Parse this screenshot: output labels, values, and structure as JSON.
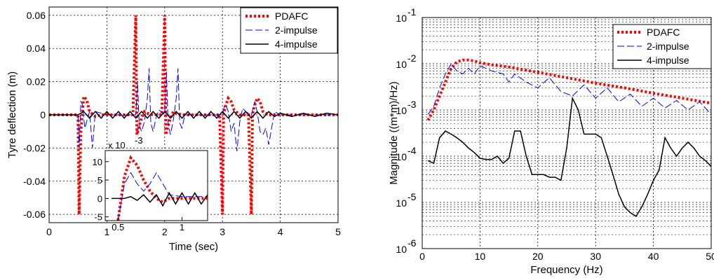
{
  "chart_data": [
    {
      "type": "line",
      "xlabel": "Time (sec)",
      "ylabel": "Tyre deflection (m)",
      "xlim": [
        0,
        5
      ],
      "ylim": [
        -0.065,
        0.065
      ],
      "xticks": [
        "0",
        "1",
        "2",
        "3",
        "4",
        "5"
      ],
      "yticks": [
        "-0.06",
        "-0.04",
        "-0.02",
        "0",
        "0.02",
        "0.04",
        "0.06"
      ],
      "grid": true,
      "legend_position": "top-right",
      "series": [
        {
          "name": "PDAFC",
          "color": "#ff0000",
          "style": "dotted",
          "width": 4,
          "x": [
            0,
            0.45,
            0.5,
            0.52,
            0.55,
            0.6,
            0.65,
            0.7,
            0.8,
            0.9,
            1.0,
            1.45,
            1.5,
            1.52,
            1.55,
            1.6,
            1.65,
            1.7,
            1.8,
            1.95,
            2.0,
            2.02,
            2.05,
            2.1,
            2.15,
            2.2,
            2.3,
            2.5,
            2.95,
            3.0,
            3.02,
            3.05,
            3.1,
            3.15,
            3.2,
            3.3,
            3.45,
            3.5,
            3.52,
            3.55,
            3.6,
            3.65,
            3.7,
            3.8,
            4.0,
            5.0
          ],
          "y": [
            0,
            0,
            0,
            -0.06,
            -0.01,
            0.011,
            0.009,
            0.002,
            -0.001,
            0,
            0,
            0,
            0.06,
            -0.012,
            -0.008,
            -0.002,
            0.002,
            0.001,
            0,
            0,
            0.06,
            -0.012,
            -0.008,
            -0.002,
            0.002,
            0.001,
            0,
            0,
            0,
            -0.06,
            0,
            0.005,
            0.01,
            0.008,
            0.003,
            0,
            0,
            -0.06,
            0,
            0.005,
            0.01,
            0.008,
            0.002,
            0,
            0,
            0
          ]
        },
        {
          "name": "2-impulse",
          "color": "#0000ff",
          "style": "dashed",
          "width": 1,
          "x": [
            0,
            0.5,
            0.52,
            0.55,
            0.58,
            0.6,
            0.62,
            0.65,
            0.7,
            0.75,
            0.8,
            1.0,
            1.5,
            1.53,
            1.56,
            1.6,
            1.65,
            1.7,
            1.73,
            1.76,
            1.8,
            1.85,
            1.9,
            2.0,
            2.03,
            2.06,
            2.1,
            2.15,
            2.2,
            2.23,
            2.26,
            2.3,
            2.35,
            2.5,
            3.0,
            3.03,
            3.06,
            3.1,
            3.15,
            3.2,
            3.25,
            3.3,
            3.35,
            3.4,
            3.5,
            3.53,
            3.56,
            3.6,
            3.65,
            3.7,
            3.75,
            3.8,
            3.9,
            4.0,
            5.0
          ],
          "y": [
            0,
            0,
            -0.02,
            0.008,
            0.006,
            -0.002,
            -0.008,
            -0.004,
            0.002,
            -0.02,
            0.002,
            0,
            0,
            0.02,
            -0.006,
            -0.01,
            -0.004,
            0.01,
            0.028,
            -0.005,
            -0.01,
            -0.002,
            0.003,
            0,
            0.026,
            -0.005,
            -0.012,
            -0.003,
            0.01,
            0.028,
            -0.005,
            -0.008,
            0,
            0,
            0,
            0.005,
            0.006,
            0.002,
            -0.01,
            -0.005,
            -0.022,
            -0.004,
            0.004,
            0.002,
            0,
            0.004,
            0.008,
            0.002,
            -0.01,
            -0.012,
            -0.008,
            -0.018,
            0.002,
            0,
            0
          ]
        },
        {
          "name": "4-impulse",
          "color": "#000000",
          "style": "solid",
          "width": 1.5,
          "x": [
            0,
            0.5,
            0.6,
            0.7,
            0.8,
            0.9,
            1.0,
            1.1,
            1.2,
            1.3,
            1.4,
            1.5,
            1.6,
            1.7,
            1.8,
            1.9,
            2.0,
            2.1,
            2.2,
            2.3,
            2.4,
            2.5,
            2.6,
            2.7,
            2.8,
            2.9,
            3.0,
            3.1,
            3.2,
            3.3,
            3.4,
            3.5,
            3.6,
            3.7,
            3.8,
            3.9,
            4.0,
            4.2,
            4.4,
            4.6,
            4.8,
            5.0
          ],
          "y": [
            0,
            0,
            0.002,
            -0.002,
            0.002,
            -0.002,
            0.002,
            -0.002,
            0.002,
            -0.002,
            0.002,
            -0.002,
            0.002,
            -0.002,
            0.002,
            -0.002,
            0.002,
            -0.002,
            0.002,
            -0.002,
            0.002,
            -0.002,
            0.002,
            -0.002,
            0.002,
            -0.002,
            0.002,
            -0.002,
            0.002,
            -0.002,
            0.002,
            -0.002,
            0.002,
            -0.002,
            0.002,
            -0.001,
            0.001,
            -0.001,
            0.001,
            -0.001,
            0.001,
            0
          ]
        }
      ],
      "inset": {
        "xlim": [
          0.4,
          1.2
        ],
        "ylim": [
          -6,
          13
        ],
        "xticks": [
          "0.5",
          "1"
        ],
        "yticks": [
          "-5",
          "0",
          "5",
          "10"
        ],
        "exponent_label": "x 10",
        "exponent_power": "-3",
        "series": [
          {
            "name": "PDAFC",
            "x": [
              0.5,
              0.55,
              0.6,
              0.65,
              0.7,
              0.75,
              0.8,
              0.85,
              0.9,
              1.0,
              1.1,
              1.2
            ],
            "y": [
              -6,
              6,
              11,
              9,
              5,
              2,
              0,
              -1,
              0,
              0,
              0,
              0
            ]
          },
          {
            "name": "2-impulse",
            "x": [
              0.5,
              0.55,
              0.6,
              0.65,
              0.7,
              0.75,
              0.8,
              0.85,
              0.9,
              1.0,
              1.1,
              1.2
            ],
            "y": [
              -6,
              4,
              7,
              4,
              2,
              4,
              7,
              4,
              1,
              0.5,
              0.5,
              0.5
            ]
          },
          {
            "name": "4-impulse",
            "x": [
              0.45,
              0.55,
              0.6,
              0.65,
              0.7,
              0.75,
              0.8,
              0.85,
              0.9,
              0.95,
              1.0,
              1.05,
              1.1,
              1.15,
              1.2
            ],
            "y": [
              0,
              0,
              0.5,
              -0.5,
              1,
              -1,
              1,
              -2,
              1.5,
              -1.5,
              1.5,
              -1.5,
              1.5,
              -1.5,
              1
            ]
          }
        ]
      }
    },
    {
      "type": "line",
      "xlabel": "Frequency (Hz)",
      "ylabel": "Magnitude ((m*m)/Hz)",
      "xlim": [
        0,
        50
      ],
      "ylim": [
        1e-06,
        0.1
      ],
      "yscale": "log",
      "xticks": [
        "0",
        "10",
        "20",
        "30",
        "40",
        "50"
      ],
      "yticks": [
        "10",
        "10",
        "10",
        "10",
        "10",
        "10"
      ],
      "ytick_powers": [
        "-6",
        "-5",
        "-4",
        "-3",
        "-2",
        "-1"
      ],
      "grid": true,
      "legend_position": "top-right",
      "series": [
        {
          "name": "PDAFC",
          "color": "#ff0000",
          "style": "dotted",
          "width": 4,
          "x": [
            1,
            2,
            3,
            4,
            5,
            6,
            7,
            8,
            9,
            10,
            12,
            15,
            20,
            25,
            30,
            35,
            40,
            45,
            50
          ],
          "y": [
            0.0006,
            0.001,
            0.002,
            0.004,
            0.008,
            0.011,
            0.012,
            0.012,
            0.0115,
            0.0105,
            0.0095,
            0.0085,
            0.0065,
            0.005,
            0.0038,
            0.003,
            0.0023,
            0.0018,
            0.0014
          ]
        },
        {
          "name": "2-impulse",
          "color": "#0000ff",
          "style": "dashed",
          "width": 1,
          "x": [
            1,
            2,
            3,
            4,
            5,
            6,
            7,
            8,
            9,
            10,
            12,
            14,
            15,
            16,
            18,
            20,
            22,
            24,
            26,
            28,
            30,
            32,
            34,
            36,
            38,
            40,
            42,
            44,
            46,
            48,
            50
          ],
          "y": [
            0.0008,
            0.0012,
            0.003,
            0.006,
            0.01,
            0.007,
            0.006,
            0.008,
            0.006,
            0.009,
            0.007,
            0.006,
            0.004,
            0.006,
            0.004,
            0.003,
            0.005,
            0.0025,
            0.002,
            0.0035,
            0.0018,
            0.003,
            0.0015,
            0.0022,
            0.0012,
            0.0018,
            0.0011,
            0.0016,
            0.001,
            0.0015,
            0.0008
          ]
        },
        {
          "name": "4-impulse",
          "color": "#000000",
          "style": "solid",
          "width": 1.5,
          "x": [
            1,
            2,
            3,
            4,
            5,
            6,
            7,
            8,
            9,
            10,
            11,
            12,
            13,
            14,
            15,
            16,
            17,
            18,
            19,
            20,
            21,
            22,
            23,
            24,
            25,
            26,
            27,
            28,
            29,
            30,
            31,
            32,
            33,
            34,
            35,
            36,
            37,
            38,
            39,
            40,
            41,
            42,
            43,
            44,
            45,
            46,
            47,
            48,
            49,
            50
          ],
          "y": [
            8e-05,
            7e-05,
            0.00025,
            0.00035,
            0.0003,
            0.00025,
            0.0002,
            0.00015,
            0.00012,
            9e-05,
            8.5e-05,
            8.5e-05,
            0.0001,
            7e-05,
            9e-05,
            0.00035,
            0.00035,
            0.0001,
            4e-05,
            4e-05,
            4e-05,
            3.5e-05,
            3.5e-05,
            3e-05,
            0.00015,
            0.0018,
            0.001,
            0.0003,
            0.0003,
            0.0003,
            0.00025,
            0.0001,
            4e-05,
            1.5e-05,
            8e-06,
            6e-06,
            5e-06,
            8e-06,
            1.5e-05,
            3e-05,
            5e-05,
            0.00025,
            0.00015,
            0.0001,
            0.00015,
            0.0002,
            0.00015,
            0.0001,
            8e-05,
            6e-05
          ]
        }
      ]
    }
  ]
}
